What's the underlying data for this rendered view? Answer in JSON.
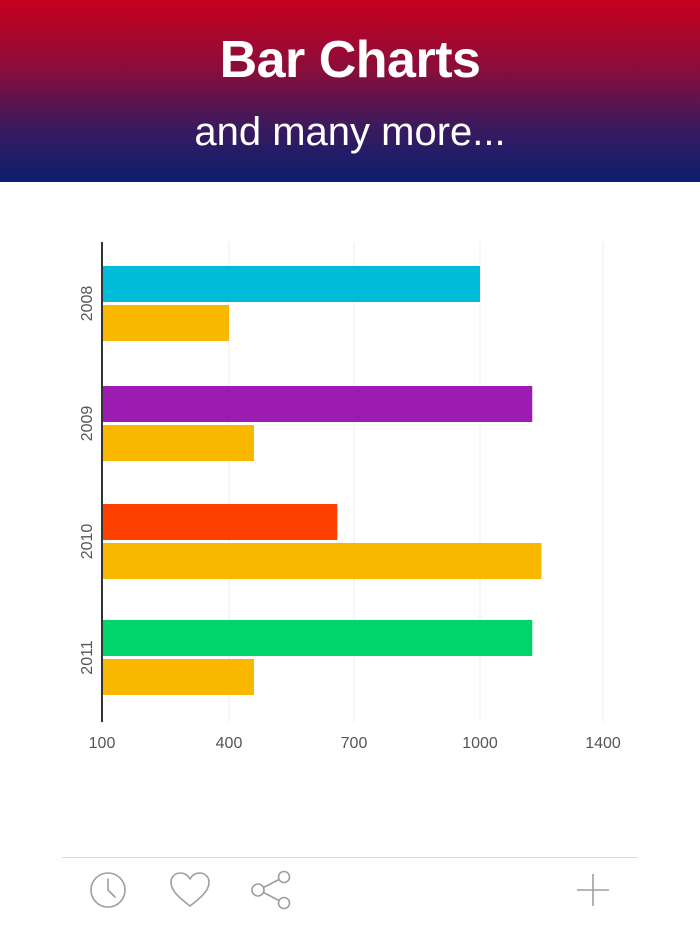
{
  "header": {
    "title": "Bar Charts",
    "subtitle": "and many more..."
  },
  "chart_data": {
    "type": "bar",
    "orientation": "horizontal",
    "categories": [
      "2008",
      "2009",
      "2010",
      "2011"
    ],
    "series": [
      {
        "values": [
          1000,
          1170,
          660,
          1170
        ],
        "colors": [
          "#00bcd8",
          "#9c1bb1",
          "#ff4100",
          "#00d46a"
        ]
      },
      {
        "values": [
          400,
          460,
          1200,
          460
        ],
        "colors": [
          "#fab700",
          "#fab700",
          "#fab700",
          "#fab700"
        ]
      }
    ],
    "xticks": [
      "100",
      "400",
      "700",
      "1000",
      "1400"
    ],
    "xlim": [
      100,
      1400
    ],
    "grid": true,
    "legend": "none"
  },
  "toolbar": {
    "icons": [
      "clock-icon",
      "heart-icon",
      "share-icon",
      "plus-icon"
    ],
    "icon_color": "#9e9e9e"
  }
}
